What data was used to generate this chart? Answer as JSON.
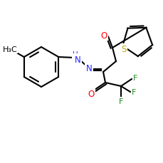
{
  "bg_color": "#ffffff",
  "bond_color": "#000000",
  "bond_lw": 1.5,
  "atom_colors": {
    "O": "#ff0000",
    "N": "#2222ff",
    "S": "#bbaa00",
    "F": "#228822",
    "C": "#000000"
  },
  "font_size": 7.5,
  "fig_size": [
    2.3,
    2.3
  ],
  "dpi": 100
}
